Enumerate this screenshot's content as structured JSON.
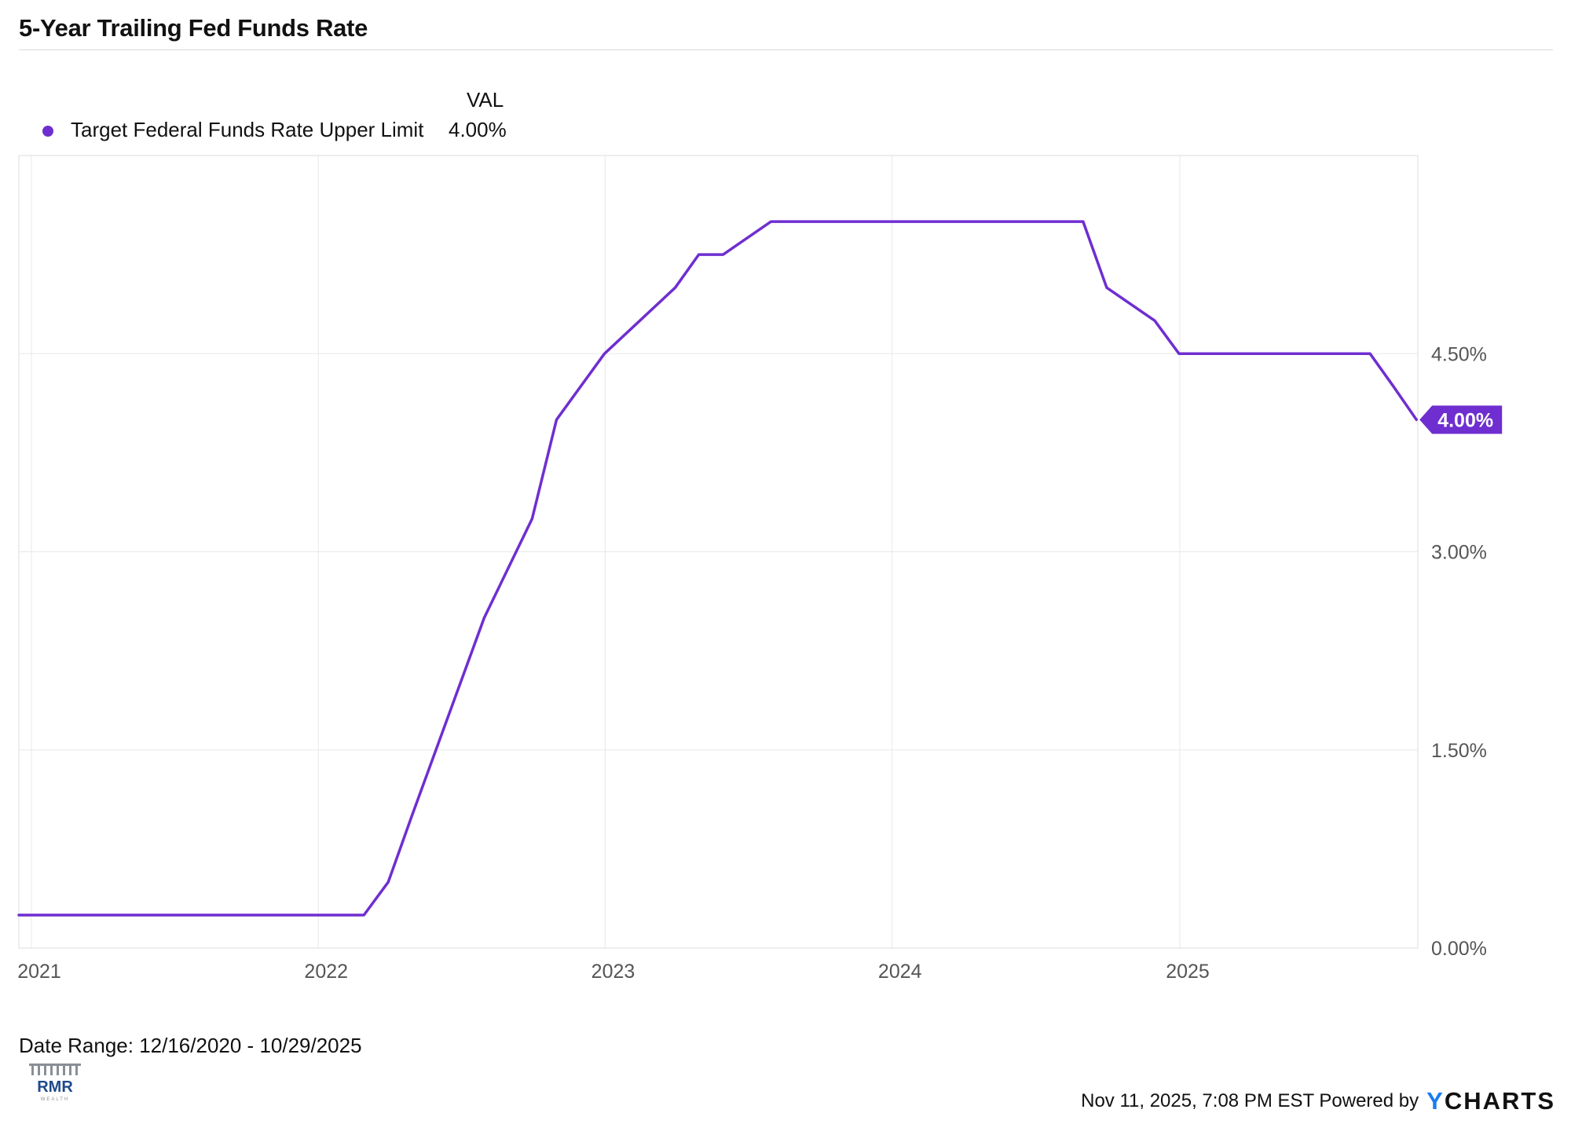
{
  "header": {
    "title": "5-Year Trailing Fed Funds Rate"
  },
  "legend": {
    "column_header": "VAL",
    "items": [
      {
        "name": "Target Federal Funds Rate Upper Limit",
        "value": "4.00%",
        "color": "#6f2ed0"
      }
    ]
  },
  "chart_data": {
    "type": "line",
    "title": "5-Year Trailing Fed Funds Rate",
    "xlabel": "",
    "ylabel": "",
    "x_ticks": [
      "2021",
      "2022",
      "2023",
      "2024",
      "2025"
    ],
    "y_ticks": [
      "0.00%",
      "1.50%",
      "3.00%",
      "4.50%"
    ],
    "y_tick_values": [
      0,
      1.5,
      3.0,
      4.5
    ],
    "ylim": [
      0,
      6.0
    ],
    "xlim": [
      "2020-12-16",
      "2025-10-29"
    ],
    "grid": true,
    "legend_position": "top-left",
    "series": [
      {
        "name": "Target Federal Funds Rate Upper Limit",
        "color": "#6f2ed0",
        "last_value_label": "4.00%",
        "points": [
          [
            "2020-12-16",
            0.25
          ],
          [
            "2022-02-28",
            0.25
          ],
          [
            "2022-03-31",
            0.5
          ],
          [
            "2022-04-30",
            1.0
          ],
          [
            "2022-07-31",
            2.5
          ],
          [
            "2022-09-30",
            3.25
          ],
          [
            "2022-10-31",
            4.0
          ],
          [
            "2022-12-31",
            4.5
          ],
          [
            "2023-03-31",
            5.0
          ],
          [
            "2023-04-30",
            5.25
          ],
          [
            "2023-05-31",
            5.25
          ],
          [
            "2023-07-31",
            5.5
          ],
          [
            "2024-08-31",
            5.5
          ],
          [
            "2024-09-30",
            5.0
          ],
          [
            "2024-11-30",
            4.75
          ],
          [
            "2024-12-31",
            4.5
          ],
          [
            "2025-08-31",
            4.5
          ],
          [
            "2025-09-30",
            4.25
          ],
          [
            "2025-10-29",
            4.0
          ]
        ]
      }
    ]
  },
  "footer": {
    "date_range": "Date Range: 12/16/2020 - 10/29/2025",
    "logo_text": "RMR",
    "logo_subtext": "WEALTH",
    "timestamp": "Nov 11, 2025, 7:08 PM EST Powered by",
    "brand_y": "Y",
    "brand_rest": "CHARTS",
    "brand_y_color": "#1a7cf0"
  }
}
